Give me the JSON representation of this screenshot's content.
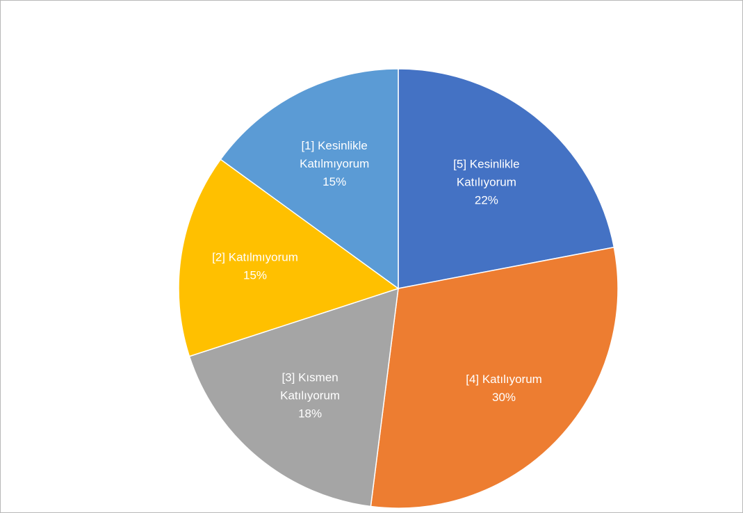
{
  "chart_data": {
    "type": "pie",
    "title": "",
    "legend": "none",
    "slices": [
      {
        "label_lines": [
          "[5] Kesinlikle",
          "Katılıyorum"
        ],
        "percent_label": "22%",
        "value": 22,
        "color": "#4472C4"
      },
      {
        "label_lines": [
          "[4] Katılıyorum"
        ],
        "percent_label": "30%",
        "value": 30,
        "color": "#ED7D31"
      },
      {
        "label_lines": [
          "[3] Kısmen",
          "Katılıyorum"
        ],
        "percent_label": "18%",
        "value": 18,
        "color": "#A5A5A5"
      },
      {
        "label_lines": [
          "[2] Katılmıyorum"
        ],
        "percent_label": "15%",
        "value": 15,
        "color": "#FFC000"
      },
      {
        "label_lines": [
          "[1] Kesinlikle",
          "Katılmıyorum"
        ],
        "percent_label": "15%",
        "value": 15,
        "color": "#5B9BD5"
      }
    ]
  }
}
